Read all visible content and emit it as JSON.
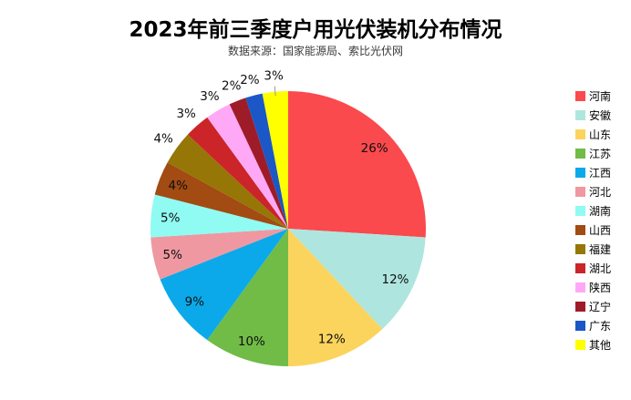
{
  "chart_data": {
    "type": "pie",
    "title": "2023年前三季度户用光伏装机分布情况",
    "subtitle": "数据来源：国家能源局、索比光伏网",
    "legend_position": "right",
    "start_angle": "12-oclock",
    "direction": "clockwise",
    "center": [
      316,
      251
    ],
    "radius": 151,
    "label_inside_factor": 0.86,
    "label_outside_factor": 1.12,
    "label_color": "#0f0f0f",
    "leader_line_color": "#999999",
    "background": "#ffffff",
    "slices": [
      {
        "name": "河南",
        "value": 26,
        "label": "26%",
        "color": "#FA4A4D",
        "label_inside": true,
        "leader_line": false
      },
      {
        "name": "安徽",
        "value": 12,
        "label": "12%",
        "color": "#AEE6DF",
        "label_inside": true,
        "leader_line": false
      },
      {
        "name": "山东",
        "value": 12,
        "label": "12%",
        "color": "#FBD45D",
        "label_inside": true,
        "leader_line": false
      },
      {
        "name": "江苏",
        "value": 10,
        "label": "10%",
        "color": "#70BC47",
        "label_inside": true,
        "leader_line": false
      },
      {
        "name": "江西",
        "value": 9,
        "label": "9%",
        "color": "#0BA9EA",
        "label_inside": true,
        "leader_line": false
      },
      {
        "name": "河北",
        "value": 5,
        "label": "5%",
        "color": "#EF98A1",
        "label_inside": true,
        "leader_line": false
      },
      {
        "name": "湖南",
        "value": 5,
        "label": "5%",
        "color": "#90FBF3",
        "label_inside": true,
        "leader_line": false
      },
      {
        "name": "山西",
        "value": 4,
        "label": "4%",
        "color": "#A24B12",
        "label_inside": true,
        "leader_line": false
      },
      {
        "name": "福建",
        "value": 4,
        "label": "4%",
        "color": "#967606",
        "label_inside": false,
        "leader_line": false
      },
      {
        "name": "湖北",
        "value": 3,
        "label": "3%",
        "color": "#CB2429",
        "label_inside": false,
        "leader_line": false
      },
      {
        "name": "陕西",
        "value": 3,
        "label": "3%",
        "color": "#FFA9F6",
        "label_inside": false,
        "leader_line": false
      },
      {
        "name": "辽宁",
        "value": 2,
        "label": "2%",
        "color": "#9E1C28",
        "label_inside": false,
        "leader_line": false
      },
      {
        "name": "广东",
        "value": 2,
        "label": "2%",
        "color": "#1B57C7",
        "label_inside": false,
        "leader_line": false
      },
      {
        "name": "其他",
        "value": 3,
        "label": "3%",
        "color": "#FFFF00",
        "label_inside": false,
        "leader_line": true
      }
    ]
  }
}
